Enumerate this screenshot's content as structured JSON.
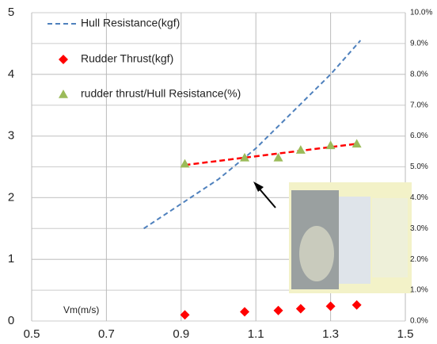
{
  "chart_data": {
    "type": "combo",
    "annotation": "Vm(m/s)",
    "xlim": [
      0.5,
      1.5
    ],
    "xticks": [
      0.5,
      0.7,
      0.9,
      1.1,
      1.3,
      1.5
    ],
    "ylim": [
      0,
      5
    ],
    "yticks": [
      0,
      1,
      2,
      3,
      4,
      5
    ],
    "y2lim": [
      0,
      10
    ],
    "y2ticks": [
      {
        "value": 0,
        "label": "0.0%"
      },
      {
        "value": 1,
        "label": "1.0%"
      },
      {
        "value": 2,
        "label": "2.0%"
      },
      {
        "value": 3,
        "label": "3.0%"
      },
      {
        "value": 4,
        "label": "4.0%"
      },
      {
        "value": 5,
        "label": "5.0%"
      },
      {
        "value": 6,
        "label": "6.0%"
      },
      {
        "value": 7,
        "label": "7.0%"
      },
      {
        "value": 8,
        "label": "8.0%"
      },
      {
        "value": 9,
        "label": "9.0%"
      },
      {
        "value": 10,
        "label": "10.0%"
      }
    ],
    "grid": true,
    "series": [
      {
        "name": "Hull Resistance(kgf)",
        "color": "#4f81bd",
        "marker": "dash",
        "axis": "y",
        "x": [
          0.8,
          0.9,
          1.0,
          1.1,
          1.2,
          1.3,
          1.38
        ],
        "values": [
          1.5,
          1.9,
          2.3,
          2.8,
          3.4,
          4.0,
          4.55
        ]
      },
      {
        "name": "Rudder Thrust(kgf)",
        "color": "#ff0000",
        "marker": "diamond",
        "axis": "y",
        "x": [
          0.91,
          1.07,
          1.16,
          1.22,
          1.3,
          1.37
        ],
        "values": [
          0.1,
          0.15,
          0.17,
          0.2,
          0.24,
          0.26
        ]
      },
      {
        "name": "rudder thrust/Hull Resistance(%)",
        "color": "#9bbb59",
        "marker": "triangle",
        "axis": "y2",
        "x": [
          0.91,
          1.07,
          1.16,
          1.22,
          1.3,
          1.37
        ],
        "values": [
          5.1,
          5.3,
          5.3,
          5.55,
          5.7,
          5.75
        ]
      }
    ]
  }
}
